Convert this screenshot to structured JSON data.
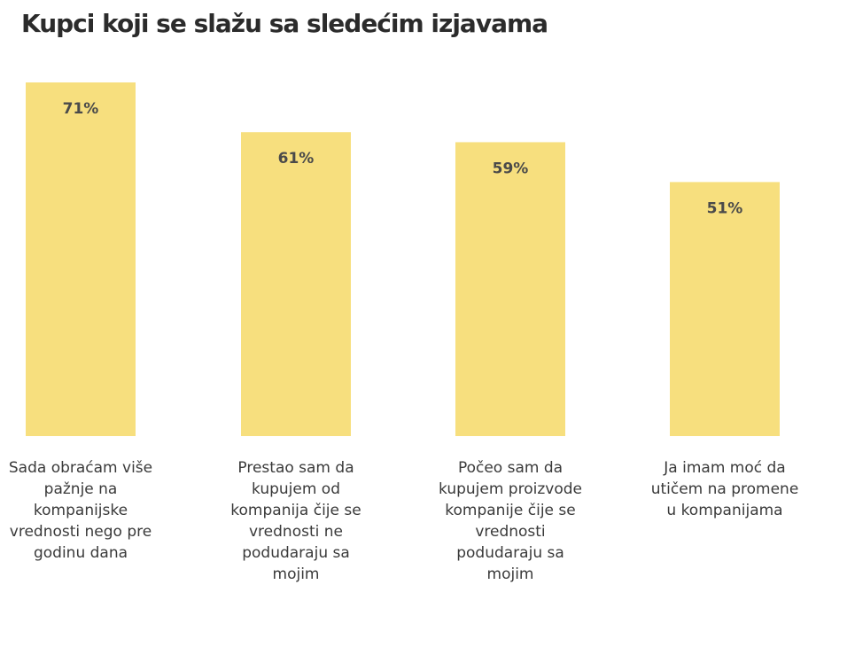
{
  "chart_data": {
    "type": "bar",
    "title": "Kupci koji se slažu sa sledećim izjavama",
    "categories": [
      "Sada obraćam više pažnje na kompanijske vrednosti nego pre godinu dana",
      "Prestao sam da kupujem od kompanija čije se vrednosti ne podudaraju sa mojim",
      "Počeo sam da kupujem proizvode kompanije čije se vrednosti podudaraju sa mojim",
      "Ja imam moć da utičem na promene u kompanijama"
    ],
    "values": [
      71,
      61,
      59,
      51
    ],
    "value_labels": [
      "71%",
      "61%",
      "59%",
      "51%"
    ],
    "unit": "%",
    "ylim": [
      0,
      71
    ],
    "grid": false,
    "bar_color": "#f7df7e"
  }
}
